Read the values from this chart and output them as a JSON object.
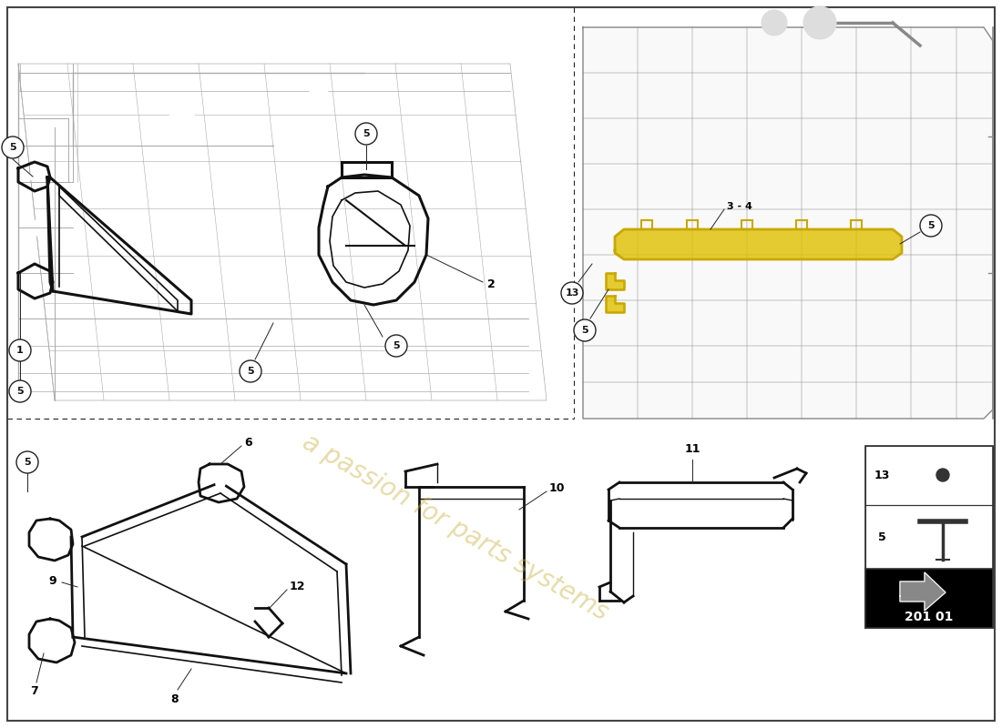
{
  "background_color": "#ffffff",
  "line_color": "#222222",
  "gray_color": "#999999",
  "light_gray": "#cccccc",
  "yellow_color": "#d4b800",
  "watermark_text": "a passion for parts systems",
  "watermark_color": "#c8b040",
  "diagram_code": "201 01",
  "border_color": "#444444"
}
